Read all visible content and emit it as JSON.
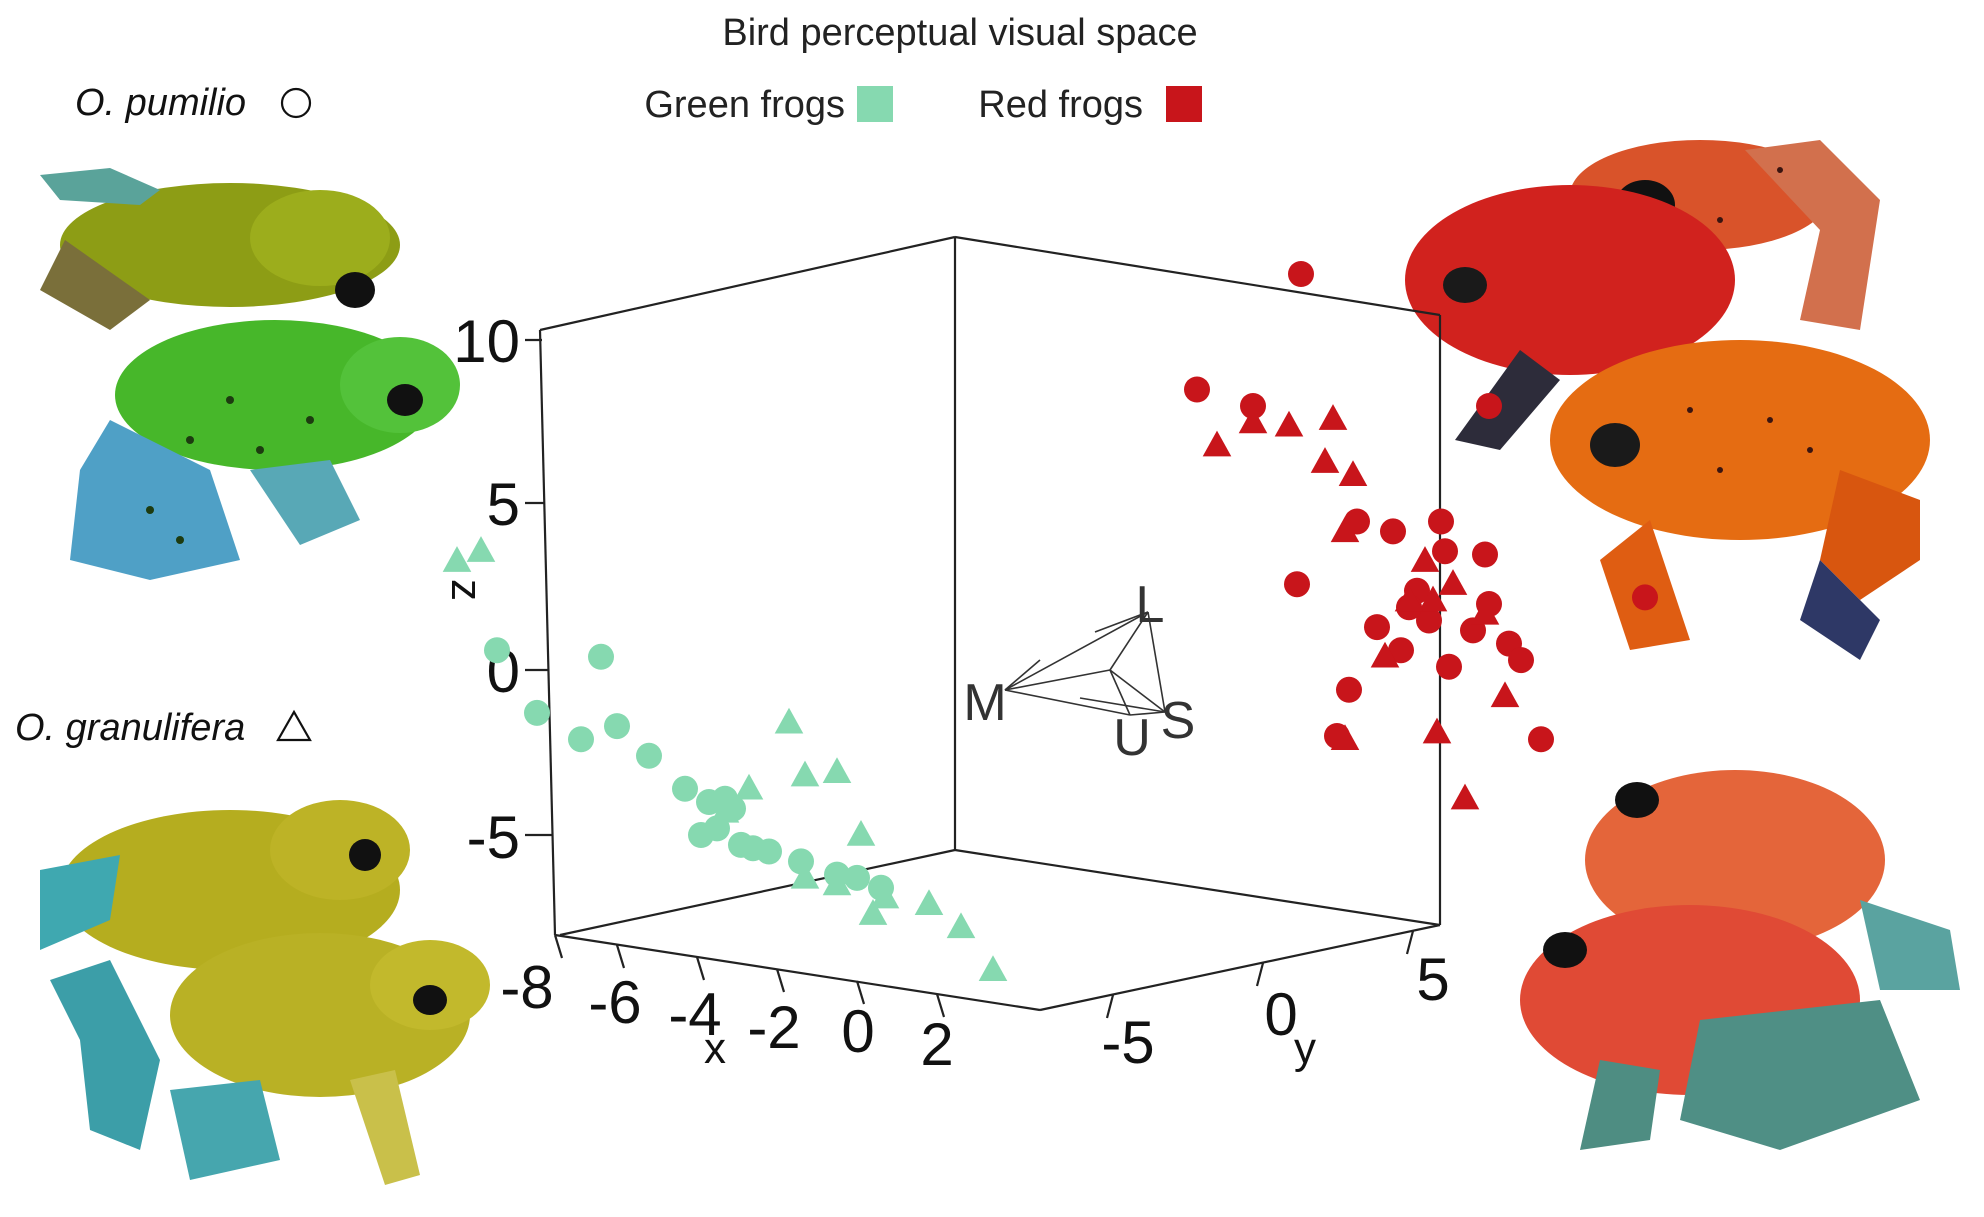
{
  "chart_data": {
    "type": "scatter",
    "title": "Bird perceptual visual space",
    "projection": "3d",
    "axes": {
      "x": {
        "label": "x",
        "ticks": [
          "-8",
          "-6",
          "-4",
          "-2",
          "0",
          "2"
        ]
      },
      "y": {
        "label": "y",
        "ticks": [
          "-5",
          "0",
          "5"
        ]
      },
      "z": {
        "label": "z",
        "ticks": [
          "10",
          "5",
          "0",
          "-5"
        ]
      }
    },
    "legend": {
      "position": "top",
      "entries": [
        {
          "label": "Green frogs",
          "color": "#86d9b0"
        },
        {
          "label": "Red frogs",
          "color": "#c8151b"
        }
      ]
    },
    "species": [
      {
        "label": "O. pumilio",
        "marker": "circle"
      },
      {
        "label": "O. granulifera",
        "marker": "triangle"
      }
    ],
    "cone_labels": [
      "L",
      "M",
      "U",
      "S"
    ],
    "colors": {
      "green": "#86d9b0",
      "red": "#c8151b",
      "axis": "#222222"
    },
    "series": [
      {
        "name": "Green frogs",
        "species": "O. pumilio",
        "marker": "circle",
        "color": "#86d9b0",
        "points": [
          [
            -5.2,
            0.6
          ],
          [
            -2.6,
            0.4
          ],
          [
            -4.2,
            -1.3
          ],
          [
            -3.1,
            -2.1
          ],
          [
            -2.2,
            -1.7
          ],
          [
            -1.4,
            -2.6
          ],
          [
            -0.5,
            -3.6
          ],
          [
            0.1,
            -4.0
          ],
          [
            0.5,
            -3.9
          ],
          [
            0.3,
            -4.8
          ],
          [
            -0.1,
            -5.0
          ],
          [
            0.9,
            -5.3
          ],
          [
            1.6,
            -5.5
          ],
          [
            2.4,
            -5.8
          ],
          [
            3.3,
            -6.2
          ],
          [
            3.8,
            -6.3
          ],
          [
            4.4,
            -6.6
          ],
          [
            1.2,
            -5.4
          ],
          [
            0.7,
            -4.2
          ]
        ]
      },
      {
        "name": "Green frogs",
        "species": "O. granulifera",
        "marker": "triangle",
        "color": "#86d9b0",
        "points": [
          [
            -6.2,
            3.3
          ],
          [
            -5.6,
            3.6
          ],
          [
            2.1,
            -1.6
          ],
          [
            2.5,
            -3.2
          ],
          [
            3.3,
            -3.1
          ],
          [
            1.1,
            -3.6
          ],
          [
            3.9,
            -5.0
          ],
          [
            2.5,
            -6.3
          ],
          [
            3.3,
            -6.5
          ],
          [
            4.5,
            -6.9
          ],
          [
            5.6,
            -7.1
          ],
          [
            4.2,
            -7.4
          ],
          [
            6.4,
            -7.8
          ],
          [
            7.2,
            -9.1
          ],
          [
            0.5,
            -4.3
          ]
        ]
      },
      {
        "name": "Red frogs",
        "species": "O. pumilio",
        "marker": "circle",
        "color": "#c8151b",
        "points": [
          [
            14.9,
            12.0
          ],
          [
            12.3,
            8.5
          ],
          [
            13.7,
            8.0
          ],
          [
            19.6,
            8.0
          ],
          [
            16.3,
            4.5
          ],
          [
            18.4,
            4.5
          ],
          [
            17.2,
            4.2
          ],
          [
            18.5,
            3.6
          ],
          [
            19.5,
            3.5
          ],
          [
            14.8,
            2.6
          ],
          [
            17.8,
            2.4
          ],
          [
            19.6,
            2.0
          ],
          [
            23.5,
            2.2
          ],
          [
            16.8,
            1.3
          ],
          [
            18.1,
            1.5
          ],
          [
            19.2,
            1.2
          ],
          [
            20.1,
            0.8
          ],
          [
            17.4,
            0.6
          ],
          [
            20.4,
            0.3
          ],
          [
            16.1,
            -0.6
          ],
          [
            15.8,
            -2.0
          ],
          [
            20.9,
            -2.1
          ],
          [
            18.6,
            0.1
          ],
          [
            17.6,
            1.9
          ]
        ]
      },
      {
        "name": "Red frogs",
        "species": "O. granulifera",
        "marker": "triangle",
        "color": "#c8151b",
        "points": [
          [
            13.7,
            7.5
          ],
          [
            14.6,
            7.4
          ],
          [
            15.7,
            7.6
          ],
          [
            12.8,
            6.8
          ],
          [
            15.5,
            6.3
          ],
          [
            16.2,
            5.9
          ],
          [
            16.0,
            4.2
          ],
          [
            18.0,
            3.3
          ],
          [
            18.2,
            2.1
          ],
          [
            18.7,
            2.6
          ],
          [
            17.6,
            2.1
          ],
          [
            19.5,
            1.7
          ],
          [
            17.0,
            0.4
          ],
          [
            20.0,
            -0.8
          ],
          [
            18.3,
            -1.9
          ],
          [
            16.0,
            -2.1
          ],
          [
            19.0,
            -3.9
          ]
        ]
      }
    ]
  }
}
